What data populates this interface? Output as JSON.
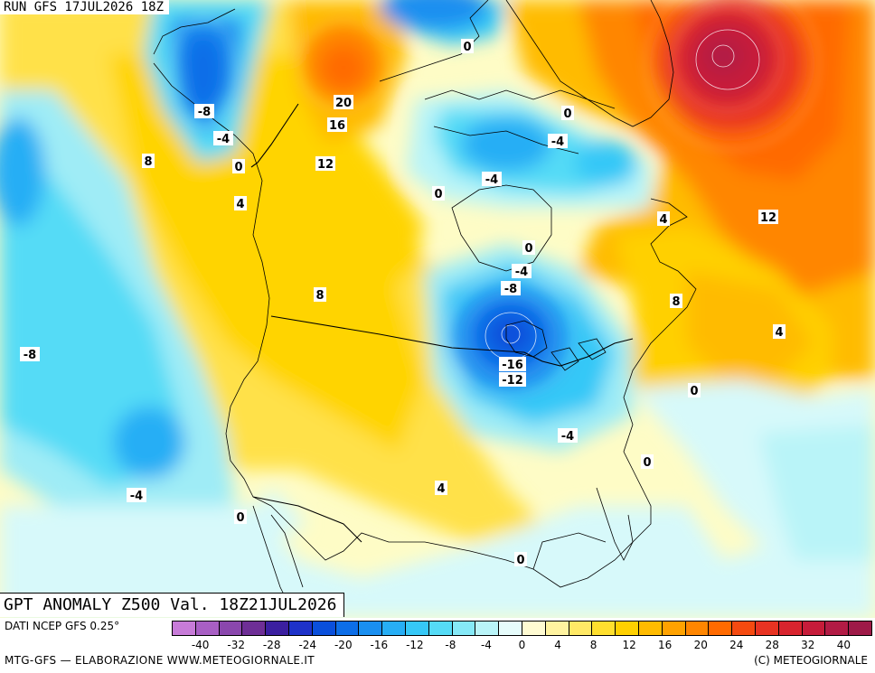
{
  "header": {
    "run_label": "RUN GFS 17JUL2026 18Z"
  },
  "title": {
    "text": "GPT ANOMALY Z500 Val. 18Z21JUL2026"
  },
  "footer": {
    "source": "DATI NCEP GFS 0.25°",
    "credit_left": "MTG-GFS — ELABORAZIONE WWW.METEOGIORNALE.IT",
    "credit_right": "(C) METEOGIORNALE"
  },
  "colors": {
    "background": "#fefcc6",
    "palette": [
      "#c77bd8",
      "#a85fc4",
      "#8a47ad",
      "#6e2e96",
      "#3b1fa0",
      "#1e32c9",
      "#0a4fdb",
      "#0d6ee8",
      "#1a8ff0",
      "#27aef5",
      "#36c8f7",
      "#55dbf6",
      "#86e9f7",
      "#b9f4f8",
      "#e6fcfb",
      "#fffbd2",
      "#fff3a0",
      "#ffe966",
      "#ffdf2e",
      "#ffd000",
      "#ffbb00",
      "#ffa200",
      "#ff8600",
      "#ff6a00",
      "#f54a10",
      "#e83322",
      "#d8242e",
      "#c61c3a",
      "#b21b45",
      "#9e1a48"
    ]
  },
  "scale": {
    "tick_labels": [
      "-40",
      "-32",
      "-28",
      "-24",
      "-20",
      "-16",
      "-12",
      "-8",
      "-4",
      "0",
      "4",
      "8",
      "12",
      "16",
      "20",
      "24",
      "28",
      "32",
      "40"
    ]
  },
  "contour_labels": [
    {
      "text": "-8"
    },
    {
      "text": "-4"
    },
    {
      "text": "0"
    },
    {
      "text": "8"
    },
    {
      "text": "4"
    },
    {
      "text": "20"
    },
    {
      "text": "16"
    },
    {
      "text": "12"
    },
    {
      "text": "0"
    },
    {
      "text": "0"
    },
    {
      "text": "-4"
    },
    {
      "text": "-4"
    },
    {
      "text": "0"
    },
    {
      "text": "4"
    },
    {
      "text": "12"
    },
    {
      "text": "0"
    },
    {
      "text": "-4"
    },
    {
      "text": "-8"
    },
    {
      "text": "8"
    },
    {
      "text": "8"
    },
    {
      "text": "4"
    },
    {
      "text": "-16"
    },
    {
      "text": "-12"
    },
    {
      "text": "0"
    },
    {
      "text": "-4"
    },
    {
      "text": "0"
    },
    {
      "text": "-8"
    },
    {
      "text": "-4"
    },
    {
      "text": "0"
    },
    {
      "text": "4"
    },
    {
      "text": "0"
    }
  ]
}
